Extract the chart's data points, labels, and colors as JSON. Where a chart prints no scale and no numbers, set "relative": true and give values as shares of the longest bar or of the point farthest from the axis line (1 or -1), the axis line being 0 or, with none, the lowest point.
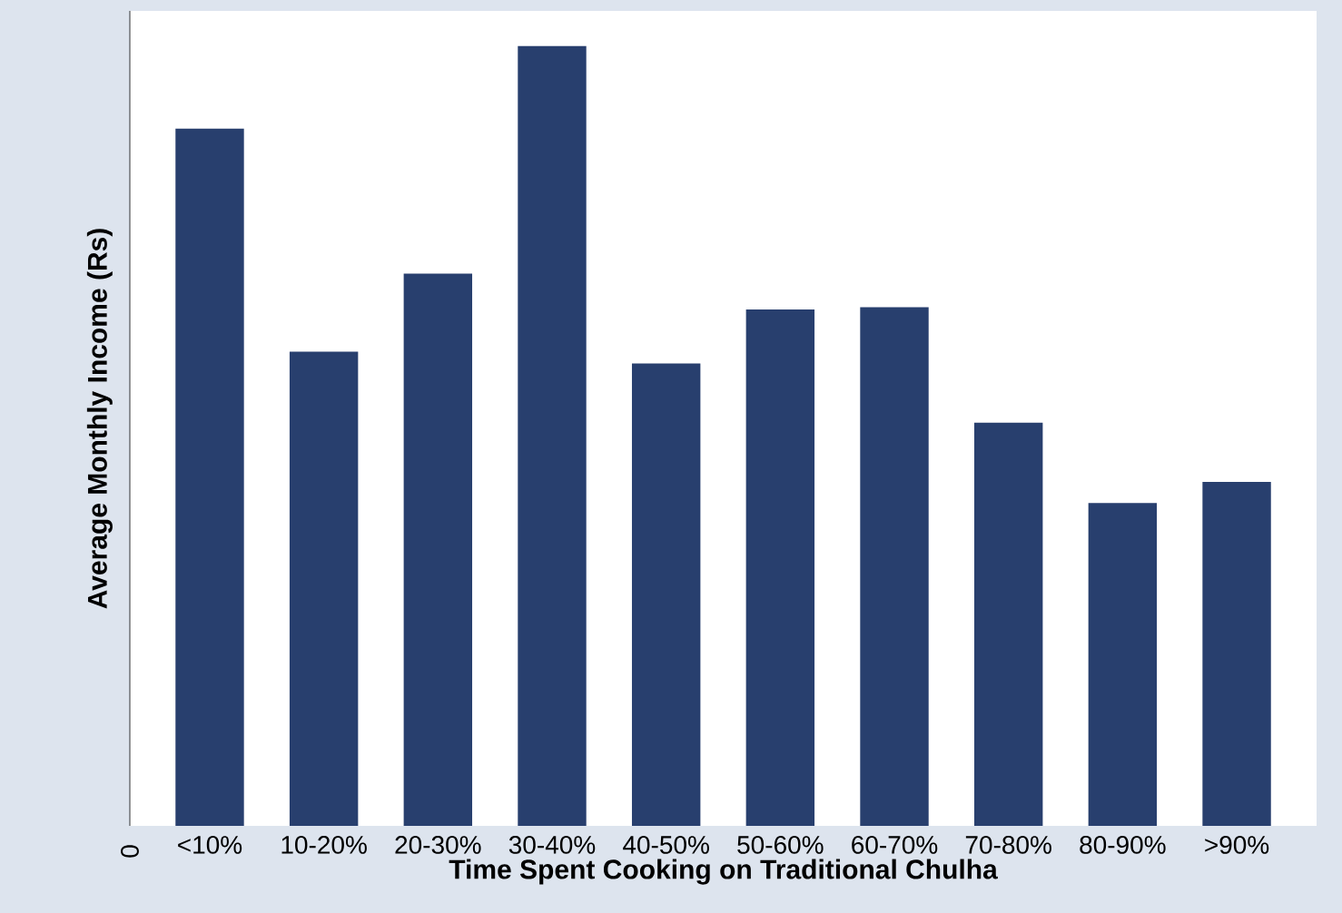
{
  "chart_data": {
    "type": "bar",
    "relative": true,
    "xlabel": "Time Spent Cooking on Traditional Chulha",
    "ylabel": "Average Monthly Income (Rs)",
    "categories": [
      "<10%",
      "10-20%",
      "20-30%",
      "30-40%",
      "40-50%",
      "50-60%",
      "60-70%",
      "70-80%",
      "80-90%",
      ">90%"
    ],
    "values": [
      0.894,
      0.608,
      0.708,
      1,
      0.593,
      0.662,
      0.665,
      0.517,
      0.414,
      0.441
    ],
    "color": "#283f6e",
    "annotations": [
      "0"
    ]
  }
}
